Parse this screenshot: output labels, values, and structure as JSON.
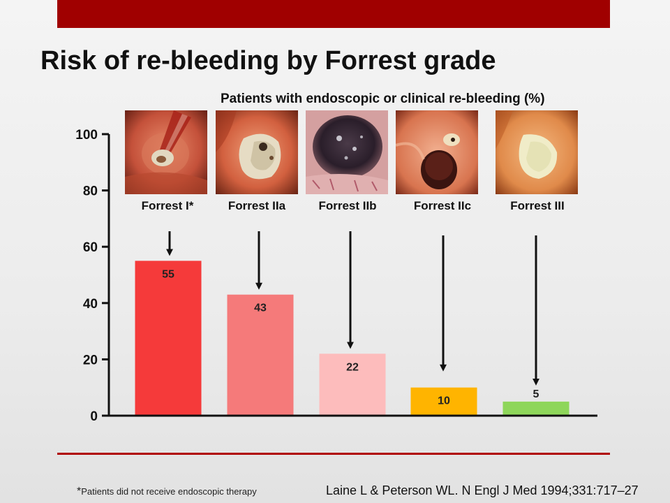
{
  "slide": {
    "title": "Risk of re-bleeding by Forrest grade",
    "footnote_marker": "*",
    "footnote_text": "Patients did not receive endoscopic therapy",
    "citation": "Laine L & Peterson WL. N Engl J Med 1994;331:717–27"
  },
  "chart_data": {
    "type": "bar",
    "title": "Patients with endoscopic or clinical re-bleeding (%)",
    "xlabel": "",
    "ylabel": "",
    "categories": [
      "Forrest I*",
      "Forrest IIa",
      "Forrest IIb",
      "Forrest IIc",
      "Forrest III"
    ],
    "values": [
      55,
      43,
      22,
      10,
      5
    ],
    "data_labels": [
      "55",
      "43",
      "22",
      "10",
      "5"
    ],
    "bar_colors": [
      "#f53a3a",
      "#f57a7a",
      "#fdbcbc",
      "#ffb400",
      "#8ed65a"
    ],
    "ylim": [
      0,
      100
    ],
    "yticks": [
      0,
      20,
      40,
      60,
      80,
      100
    ],
    "ytick_labels": [
      "0",
      "20",
      "40",
      "60",
      "80",
      "100"
    ],
    "grid": false,
    "legend": "none",
    "annotations": "downward arrows from each grade's endoscopy photo to its bar"
  },
  "images": [
    {
      "name": "forrest-i-photo",
      "icon": "active-bleeding-ulcer-photo"
    },
    {
      "name": "forrest-iia-photo",
      "icon": "visible-vessel-ulcer-photo"
    },
    {
      "name": "forrest-iib-photo",
      "icon": "adherent-clot-ulcer-photo"
    },
    {
      "name": "forrest-iic-photo",
      "icon": "pigmented-spot-ulcer-photo"
    },
    {
      "name": "forrest-iii-photo",
      "icon": "clean-base-ulcer-photo"
    }
  ],
  "colors": {
    "banner": "#a00000",
    "rule": "#b00000",
    "axis": "#111111",
    "text": "#111111"
  }
}
